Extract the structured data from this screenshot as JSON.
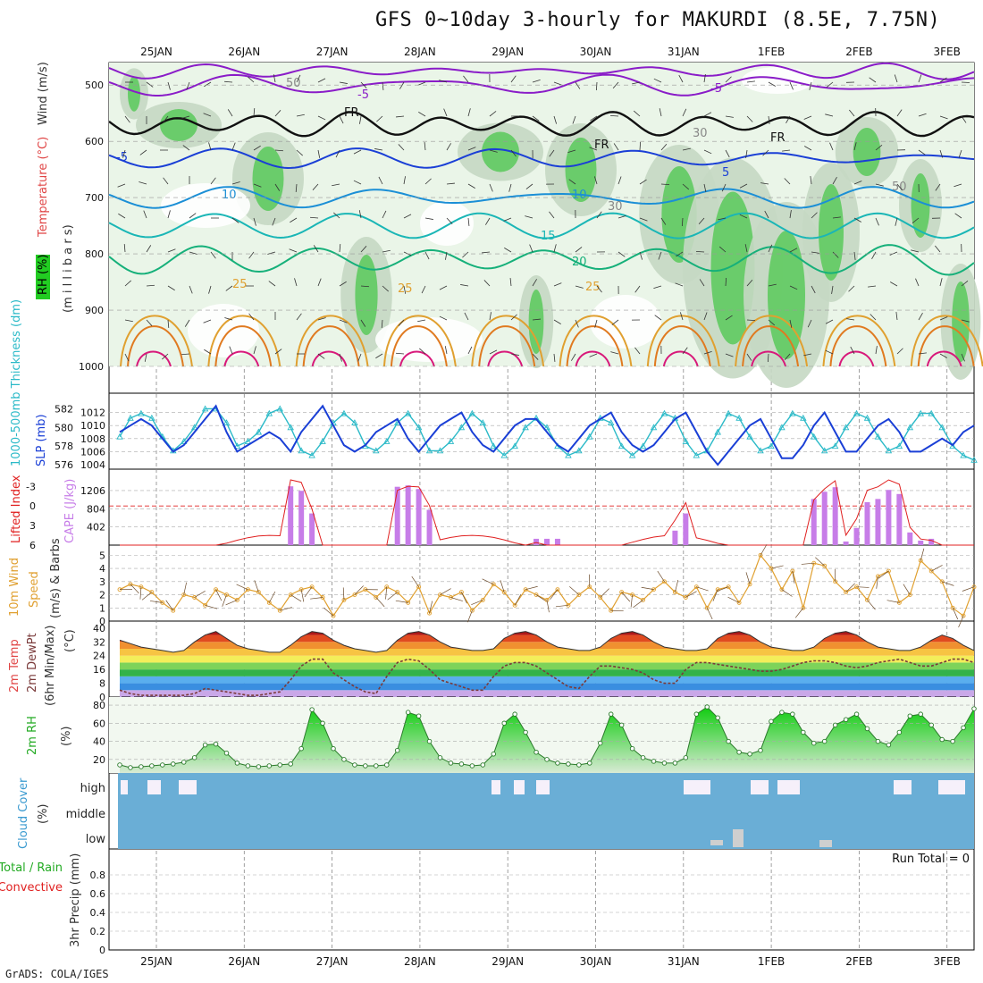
{
  "title": "GFS 0~10day 3-hourly for MAKURDI (8.5E, 7.75N)",
  "credit": "GrADS: COLA/IGES",
  "dates": [
    "25JAN",
    "26JAN",
    "27JAN",
    "28JAN",
    "29JAN",
    "30JAN",
    "31JAN",
    "1FEB",
    "2FEB",
    "3FEB"
  ],
  "panels": {
    "upper": {
      "label_rh": "RH (%)",
      "label_temp": "Temperature (°C)",
      "label_wind": "Wind (m/s)",
      "label_units": "(m i l l i b a r s)",
      "pressure_ticks": [
        "500",
        "600",
        "700",
        "800",
        "900",
        "1000"
      ],
      "isotherm_labels": [
        "-5",
        "-5",
        "-5",
        "5",
        "10",
        "10",
        "15",
        "20",
        "25",
        "25",
        "25",
        "FR",
        "FR",
        "FR",
        "50",
        "30",
        "30",
        "50"
      ]
    },
    "slp": {
      "label_thick": "1000-500mb Thickness (dm)",
      "label_slp": "SLP (mb)",
      "thick_ticks": [
        "582",
        "580",
        "578",
        "576"
      ],
      "slp_ticks": [
        "1012",
        "1010",
        "1008",
        "1006",
        "1004"
      ]
    },
    "cape": {
      "label_li": "Lifted Index",
      "label_cape": "CAPE (J/kg)",
      "li_ticks": [
        "-3",
        "0",
        "3",
        "6"
      ],
      "cape_ticks": [
        "1206",
        "804",
        "402"
      ]
    },
    "wind10": {
      "label_a": "10m Wind",
      "label_b": "Speed",
      "label_c": "(m/s) & Barbs",
      "ticks": [
        "5",
        "4",
        "3",
        "2",
        "1",
        "0"
      ]
    },
    "temp2m": {
      "label_a": "2m Temp",
      "label_b": "2m DewPt",
      "label_c": "(6hr Min/Max)",
      "label_d": "(°C)",
      "ticks": [
        "40",
        "32",
        "24",
        "16",
        "8",
        "0"
      ]
    },
    "rh2m": {
      "label_a": "2m RH",
      "label_b": "(%)",
      "ticks": [
        "80",
        "60",
        "40",
        "20"
      ]
    },
    "cloud": {
      "label_a": "Cloud Cover",
      "label_b": "(%)",
      "levels": [
        "high",
        "middle",
        "low"
      ]
    },
    "precip": {
      "label_a": "Total / Rain",
      "label_b": "Convective",
      "label_c": "3hr Precip (mm)",
      "ticks": [
        "0.8",
        "0.6",
        "0.4",
        "0.2",
        "0"
      ],
      "run_total": "Run Total = 0"
    }
  },
  "colors": {
    "slp": "#1a3fd6",
    "thickness": "#2bbac8",
    "cape": "#c77de8",
    "lifted_index": "#e02020",
    "wind": "#e0a030",
    "rh_fill": "#22cc22",
    "dewpt": "#7a3a3a",
    "cloud": "#6aaed6",
    "purple": "#8a1cc8"
  },
  "chart_data": {
    "type": "line",
    "x_unit": "3-hour steps from 24JAN 12Z (81 steps)",
    "slp_mb": [
      1009,
      1010,
      1011,
      1010,
      1008,
      1006,
      1007,
      1009,
      1011,
      1013,
      1009,
      1006,
      1007,
      1008,
      1009,
      1008,
      1006,
      1009,
      1011,
      1013,
      1010,
      1007,
      1006,
      1007,
      1009,
      1010,
      1011,
      1008,
      1006,
      1008,
      1010,
      1011,
      1012,
      1009,
      1007,
      1006,
      1008,
      1010,
      1011,
      1011,
      1009,
      1007,
      1006,
      1008,
      1010,
      1011,
      1012,
      1009,
      1007,
      1006,
      1007,
      1009,
      1011,
      1012,
      1009,
      1006,
      1004,
      1006,
      1008,
      1010,
      1011,
      1008,
      1005,
      1005,
      1007,
      1010,
      1012,
      1009,
      1006,
      1006,
      1008,
      1010,
      1011,
      1009,
      1006,
      1006,
      1007,
      1008,
      1007,
      1009,
      1010
    ],
    "thickness_dm": [
      579,
      581,
      581.5,
      581,
      579,
      577.5,
      578.5,
      580,
      582,
      582,
      580.5,
      578,
      578.5,
      579.5,
      581.5,
      582,
      580,
      577.5,
      577,
      578.5,
      580.5,
      581.5,
      580.5,
      578,
      577.5,
      578.5,
      580.5,
      581.5,
      580,
      577.5,
      577.5,
      578.5,
      580,
      581.5,
      580.5,
      578,
      577,
      578,
      580,
      581,
      580,
      578,
      577,
      577.5,
      579,
      581,
      580.5,
      578,
      577,
      578,
      580,
      581.5,
      581,
      578.5,
      577,
      577.5,
      579.5,
      581.5,
      581,
      579,
      577.5,
      578,
      580,
      581.5,
      581,
      579,
      577.5,
      578,
      580,
      581.5,
      581,
      579,
      577.5,
      578,
      580,
      581.5,
      581.5,
      580,
      578,
      577,
      576.5
    ],
    "cape_jkg": [
      0,
      0,
      0,
      0,
      0,
      0,
      0,
      0,
      0,
      0,
      0,
      0,
      0,
      0,
      0,
      0,
      1300,
      1200,
      700,
      0,
      0,
      0,
      0,
      0,
      0,
      0,
      1290,
      1320,
      1240,
      780,
      0,
      0,
      0,
      0,
      0,
      0,
      0,
      0,
      0,
      140,
      140,
      140,
      0,
      0,
      0,
      0,
      0,
      0,
      0,
      0,
      0,
      0,
      320,
      700,
      0,
      0,
      0,
      0,
      0,
      0,
      0,
      0,
      0,
      0,
      0,
      1020,
      1180,
      1280,
      80,
      0,
      40,
      0,
      0,
      0,
      0,
      0,
      0,
      0,
      0,
      0,
      0
    ],
    "cape_jkg_late": [
      0,
      0,
      0,
      0,
      0,
      0,
      0,
      0,
      0,
      0,
      0,
      0,
      0,
      0,
      0,
      0,
      0,
      0,
      0,
      0,
      0,
      0,
      0,
      0,
      0,
      0,
      0,
      0,
      0,
      0,
      0,
      0,
      0,
      0,
      0,
      0,
      0,
      0,
      0,
      0,
      0,
      0,
      0,
      0,
      0,
      0,
      0,
      0,
      0,
      0,
      0,
      0,
      0,
      0,
      0,
      0,
      0,
      0,
      0,
      0,
      0,
      0,
      0,
      0,
      0,
      0,
      0,
      0,
      0,
      380,
      950,
      1020,
      1220,
      1130,
      280,
      100,
      140,
      0,
      0,
      0,
      0
    ],
    "wind10_ms": [
      2.4,
      2.8,
      2.6,
      2.2,
      1.4,
      0.8,
      2.0,
      1.8,
      1.2,
      2.4,
      2.0,
      1.6,
      2.4,
      2.2,
      1.4,
      0.8,
      2.0,
      2.4,
      2.6,
      1.8,
      0.4,
      1.6,
      2.0,
      2.4,
      1.8,
      2.6,
      2.2,
      1.4,
      2.6,
      0.6,
      2.0,
      1.8,
      2.2,
      0.8,
      1.6,
      2.8,
      2.2,
      1.2,
      2.4,
      2.0,
      1.6,
      2.4,
      1.2,
      2.0,
      2.6,
      1.8,
      0.8,
      2.2,
      2.0,
      1.6,
      2.4,
      3.0,
      2.2,
      1.8,
      2.6,
      1.0,
      2.4,
      2.6,
      1.4,
      2.8,
      5.0,
      4.0,
      2.4,
      3.8,
      1.0,
      4.4,
      4.2,
      3.0,
      2.2,
      2.6,
      1.6,
      3.4,
      3.8,
      1.4,
      2.0,
      4.6,
      3.8,
      3.0,
      1.0,
      0.4,
      2.6
    ],
    "temp2m_c": [
      33,
      31,
      29,
      28,
      27,
      26,
      27,
      32,
      36,
      38,
      34,
      30,
      28,
      27,
      26,
      26,
      30,
      35,
      38,
      37,
      33,
      30,
      28,
      27,
      26,
      27,
      33,
      37,
      38,
      36,
      32,
      29,
      28,
      27,
      27,
      28,
      34,
      37,
      38,
      36,
      32,
      29,
      28,
      27,
      27,
      29,
      34,
      37,
      38,
      36,
      32,
      29,
      28,
      27,
      27,
      28,
      34,
      37,
      38,
      36,
      32,
      29,
      28,
      27,
      27,
      29,
      34,
      37,
      38,
      36,
      32,
      29,
      28,
      27,
      27,
      29,
      33,
      36,
      34,
      30,
      27
    ],
    "dewpt2m_c": [
      4,
      2,
      1,
      1,
      1,
      1,
      1,
      2,
      5,
      4,
      3,
      2,
      1,
      1,
      2,
      3,
      10,
      18,
      22,
      22,
      14,
      10,
      6,
      3,
      2,
      12,
      20,
      22,
      21,
      16,
      10,
      8,
      6,
      4,
      4,
      12,
      18,
      20,
      20,
      18,
      14,
      10,
      6,
      5,
      12,
      18,
      18,
      17,
      16,
      14,
      10,
      8,
      8,
      16,
      20,
      20,
      19,
      18,
      17,
      16,
      15,
      15,
      16,
      18,
      20,
      21,
      21,
      20,
      18,
      17,
      18,
      20,
      21,
      22,
      20,
      18,
      18,
      20,
      22,
      22,
      20
    ],
    "rh2m_pct": [
      14,
      11,
      12,
      13,
      14,
      15,
      17,
      22,
      36,
      37,
      27,
      16,
      13,
      12,
      13,
      14,
      15,
      32,
      75,
      60,
      32,
      20,
      14,
      13,
      13,
      14,
      30,
      72,
      68,
      40,
      22,
      16,
      15,
      13,
      14,
      26,
      60,
      70,
      50,
      28,
      20,
      16,
      15,
      14,
      16,
      38,
      70,
      58,
      32,
      22,
      18,
      16,
      16,
      22,
      70,
      78,
      66,
      40,
      28,
      26,
      30,
      62,
      72,
      70,
      50,
      38,
      40,
      58,
      64,
      70,
      54,
      40,
      36,
      50,
      68,
      70,
      58,
      42,
      40,
      55,
      76
    ],
    "precip_mm": [],
    "ylim_pressure": [
      1000,
      460
    ],
    "ylim_slp": [
      1004,
      1014
    ],
    "ylim_thickness": [
      576,
      583
    ],
    "ylim_cape": [
      0,
      1600
    ],
    "ylim_wind": [
      0,
      5.5
    ],
    "ylim_temp": [
      0,
      42
    ],
    "ylim_rh": [
      10,
      82
    ],
    "ylim_precip": [
      0,
      1
    ]
  }
}
